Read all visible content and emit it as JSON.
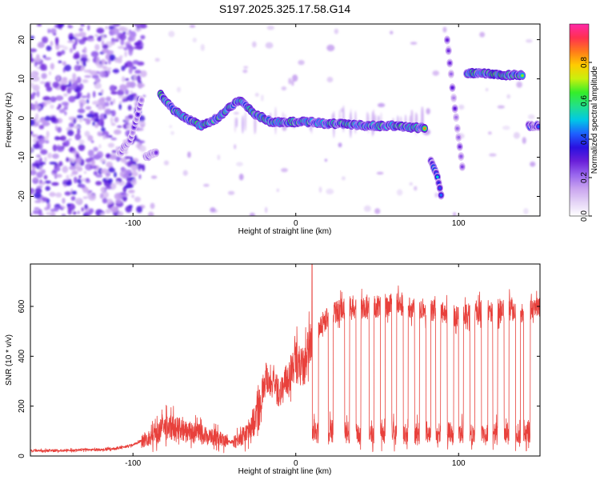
{
  "title": "S197.2025.325.17.58.G14",
  "colors": {
    "snr_line": "#e8413c",
    "colormap": [
      "#ffffff",
      "#e4d4f6",
      "#c9a4ef",
      "#9966ee",
      "#6a1fd9",
      "#2a10e0",
      "#1e60ff",
      "#00c8e6",
      "#22e08a",
      "#34ee2a",
      "#c8f00e",
      "#ffcc00",
      "#ff7a1a",
      "#ff3050",
      "#ff28a8"
    ]
  },
  "chart_data": [
    {
      "type": "heatmap",
      "name": "spectrogram",
      "xlabel": "Height of straight line (km)",
      "ylabel": "Frequency (Hz)",
      "xlim": [
        -163,
        150
      ],
      "ylim": [
        -25,
        24
      ],
      "xticks": [
        -100,
        0,
        100
      ],
      "xtick_labels": [
        "-100",
        "0",
        "100"
      ],
      "yticks": [
        -20,
        -10,
        0,
        10,
        20
      ],
      "ytick_labels": [
        "-20",
        "-10",
        "0",
        "10",
        "20"
      ],
      "colorbar": {
        "label": "Normalized spectral amplitude",
        "range": [
          0,
          1
        ],
        "ticks": [
          0.0,
          0.2,
          0.4,
          0.6,
          0.8
        ],
        "tick_labels": [
          "0.0",
          "0.2",
          "0.4",
          "0.6",
          "0.8"
        ]
      },
      "ridges": [
        {
          "name": "trace-left-a",
          "points": [
            [
              -108,
              -9
            ],
            [
              -101,
              -5
            ],
            [
              -97,
              1
            ],
            [
              -94,
              6
            ]
          ],
          "peak": 0.33
        },
        {
          "name": "trace-left-b",
          "points": [
            [
              -92,
              -10
            ],
            [
              -88,
              -9
            ],
            [
              -85,
              -9
            ]
          ],
          "peak": 0.35
        },
        {
          "name": "trace-left-c",
          "points": [
            [
              -83,
              6
            ],
            [
              -75,
              2
            ],
            [
              -68,
              0
            ],
            [
              -58,
              -2
            ],
            [
              -48,
              0
            ],
            [
              -40,
              3
            ],
            [
              -35,
              4.5
            ],
            [
              -30,
              3
            ],
            [
              -25,
              1
            ],
            [
              -20,
              0
            ],
            [
              -15,
              -1
            ],
            [
              -8,
              -1
            ],
            [
              0,
              -1
            ],
            [
              10,
              -1
            ],
            [
              20,
              -1.5
            ],
            [
              30,
              -1.5
            ],
            [
              45,
              -2
            ],
            [
              60,
              -2
            ],
            [
              75,
              -2.5
            ],
            [
              80,
              -2.5
            ]
          ],
          "peak": 0.9
        },
        {
          "name": "trace-dive",
          "points": [
            [
              83,
              -11
            ],
            [
              87,
              -15
            ],
            [
              90,
              -21
            ]
          ],
          "peak": 0.62
        },
        {
          "name": "trace-sweep",
          "points": [
            [
              93,
              20
            ],
            [
              97,
              5
            ],
            [
              100,
              -5
            ],
            [
              103,
              -15
            ]
          ],
          "peak": 0.3
        },
        {
          "name": "trace-right",
          "points": [
            [
              105,
              11.5
            ],
            [
              115,
              11.5
            ],
            [
              125,
              11
            ],
            [
              135,
              11
            ],
            [
              140,
              11
            ]
          ],
          "peak": 0.95
        },
        {
          "name": "trace-tail",
          "points": [
            [
              143,
              -2
            ],
            [
              150,
              -2
            ]
          ],
          "peak": 0.6
        }
      ]
    },
    {
      "type": "line",
      "name": "snr",
      "xlabel": "Height of straight line (km)",
      "ylabel": "SNR (10 * v/v)",
      "xlim": [
        -163,
        150
      ],
      "ylim": [
        0,
        770
      ],
      "xticks": [
        -100,
        0,
        100
      ],
      "xtick_labels": [
        "-100",
        "0",
        "100"
      ],
      "yticks": [
        0,
        200,
        400,
        600
      ],
      "ytick_labels": [
        "0",
        "200",
        "400",
        "600"
      ],
      "series": [
        {
          "name": "SNR",
          "x": [
            -163,
            -150,
            -140,
            -130,
            -120,
            -110,
            -100,
            -95,
            -90,
            -85,
            -82,
            -78,
            -70,
            -60,
            -55,
            -50,
            -45,
            -40,
            -35,
            -30,
            -25,
            -22,
            -20,
            -18,
            -15,
            -10,
            -5,
            0,
            5,
            8,
            10,
            12,
            15,
            20,
            25,
            30,
            35,
            40,
            50,
            60,
            70,
            80,
            90,
            100,
            110,
            120,
            130,
            140,
            150
          ],
          "values": [
            20,
            22,
            22,
            25,
            25,
            30,
            45,
            60,
            70,
            90,
            110,
            120,
            100,
            90,
            80,
            75,
            70,
            55,
            70,
            90,
            150,
            200,
            280,
            320,
            300,
            250,
            310,
            380,
            350,
            420,
            480,
            500,
            520,
            560,
            580,
            590,
            600,
            590,
            600,
            610,
            600,
            590,
            580,
            560,
            580,
            580,
            590,
            580,
            590
          ],
          "drop_level": 90,
          "drops": [
            [
              10,
              14
            ],
            [
              20,
              23
            ],
            [
              30,
              33
            ],
            [
              37,
              40
            ],
            [
              45,
              48
            ],
            [
              52,
              55
            ],
            [
              59,
              62
            ],
            [
              66,
              69
            ],
            [
              73,
              76
            ],
            [
              80,
              83
            ],
            [
              86,
              89
            ],
            [
              93,
              97
            ],
            [
              100,
              103
            ],
            [
              107,
              110
            ],
            [
              114,
              118
            ],
            [
              121,
              124
            ],
            [
              128,
              131
            ],
            [
              135,
              138
            ],
            [
              140,
              144
            ]
          ],
          "spike": {
            "x": 10,
            "value": 770
          }
        }
      ]
    }
  ]
}
